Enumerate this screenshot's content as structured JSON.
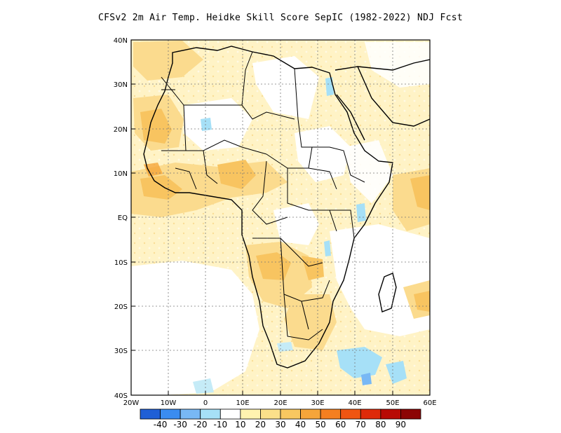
{
  "title": "CFSv2  2m Air Temp. Heidke Skill Score SepIC (1982-2022) NDJ Fcst",
  "map": {
    "lon_range": [
      -20,
      60
    ],
    "lat_range": [
      -40,
      40
    ],
    "lat_ticks": [
      "40N",
      "30N",
      "20N",
      "10N",
      "EQ",
      "10S",
      "20S",
      "30S",
      "40S"
    ],
    "lon_ticks": [
      "20W",
      "10W",
      "0",
      "10E",
      "20E",
      "30E",
      "40E",
      "50E",
      "60E"
    ],
    "grid": true
  },
  "colorbar": {
    "labels": [
      "-40",
      "-30",
      "-20",
      "-10",
      "10",
      "20",
      "30",
      "40",
      "50",
      "60",
      "70",
      "80",
      "90"
    ],
    "colors": [
      "#1f5fd6",
      "#3a8cf0",
      "#78b8f5",
      "#a6e0f7",
      "#ffffff",
      "#fff3b0",
      "#fbe08a",
      "#f8c760",
      "#f5a53a",
      "#f47f20",
      "#f05512",
      "#de2a0a",
      "#b80a05",
      "#8c0505"
    ]
  },
  "fill_colors": {
    "land_base": "#fde8a9",
    "light": "#fff3c6",
    "mid": "#fbdb8e",
    "strong": "#f8c460",
    "blue_light": "#c5ebf7",
    "blue": "#a6e0f7",
    "blue_dark": "#78b8f5"
  }
}
